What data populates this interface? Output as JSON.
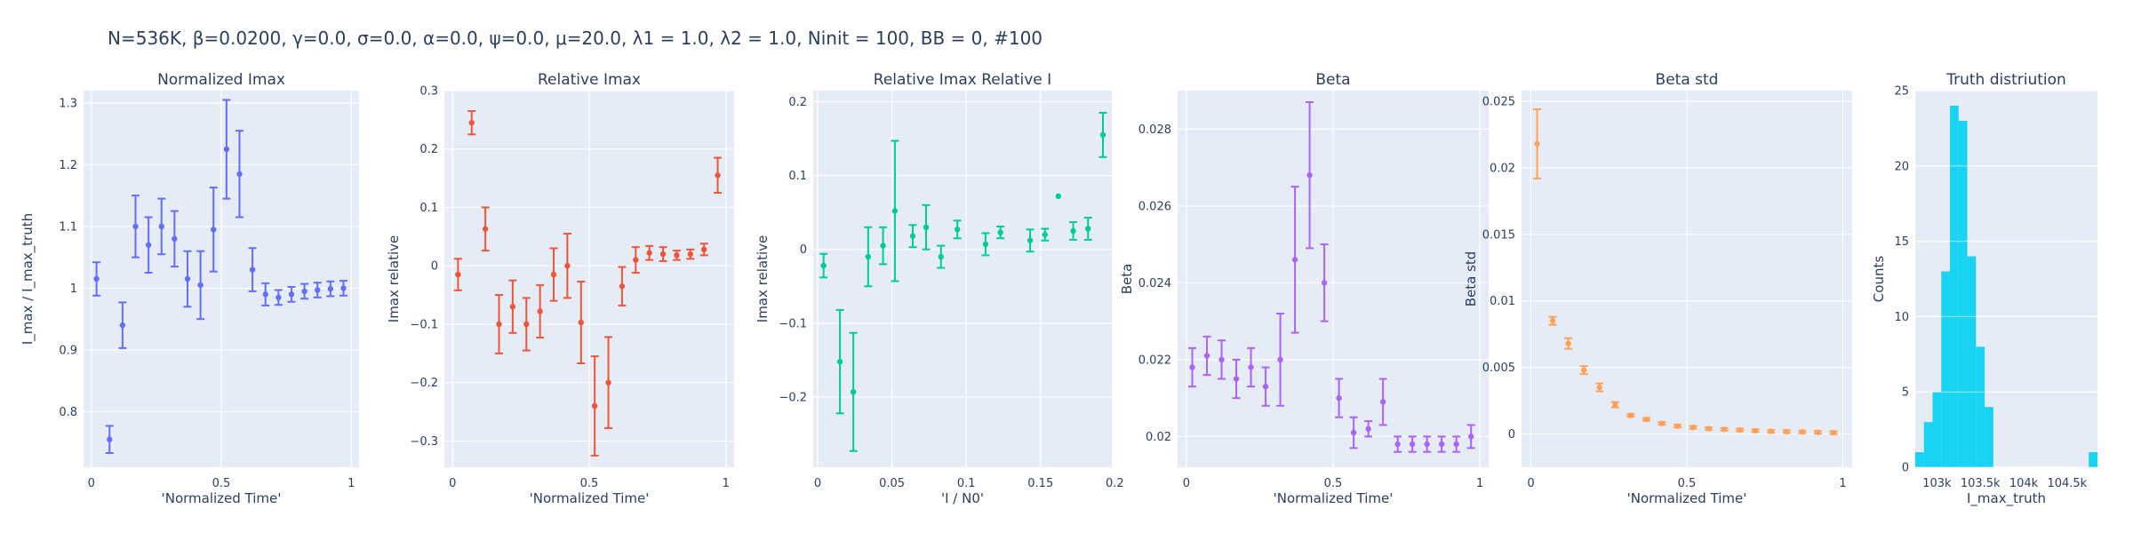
{
  "figure_title": "N=536K, β=0.0200, γ=0.0, σ=0.0,  α=0.0, ψ=0.0, μ=20.0, λ1 = 1.0, λ2 = 1.0, Ninit = 100, BB = 0, #100",
  "chart_data": [
    {
      "id": "normalized-imax",
      "type": "scatter",
      "title": "Normalized Imax",
      "xlabel": "'Normalized Time'",
      "ylabel": "I_max / I_max_truth",
      "color": "#636efa",
      "xlim": [
        -0.03,
        1.03
      ],
      "ylim": [
        0.71,
        1.32
      ],
      "xticks": [
        0,
        0.5,
        1
      ],
      "xticklabels": [
        "0",
        "0.5",
        "1"
      ],
      "yticks": [
        0.8,
        0.9,
        1.0,
        1.1,
        1.2,
        1.3
      ],
      "yticklabels": [
        "0.8",
        "0.9",
        "1",
        "1.1",
        "1.2",
        "1.3"
      ],
      "x": [
        0.02,
        0.07,
        0.12,
        0.17,
        0.22,
        0.27,
        0.32,
        0.37,
        0.42,
        0.47,
        0.52,
        0.57,
        0.62,
        0.67,
        0.72,
        0.77,
        0.82,
        0.87,
        0.92,
        0.97
      ],
      "y": [
        1.015,
        0.755,
        0.94,
        1.1,
        1.07,
        1.1,
        1.08,
        1.015,
        1.005,
        1.095,
        1.225,
        1.185,
        1.03,
        0.99,
        0.985,
        0.99,
        0.995,
        0.997,
        0.999,
        1.0
      ],
      "err": [
        0.027,
        0.022,
        0.037,
        0.05,
        0.045,
        0.045,
        0.045,
        0.045,
        0.055,
        0.068,
        0.08,
        0.07,
        0.035,
        0.018,
        0.012,
        0.012,
        0.012,
        0.012,
        0.012,
        0.012
      ]
    },
    {
      "id": "relative-imax",
      "type": "scatter",
      "title": "Relative Imax",
      "xlabel": "'Normalized Time'",
      "ylabel": "Imax relative",
      "color": "#ef553b",
      "xlim": [
        -0.03,
        1.03
      ],
      "ylim": [
        -0.345,
        0.3
      ],
      "xticks": [
        0,
        0.5,
        1
      ],
      "xticklabels": [
        "0",
        "0.5",
        "1"
      ],
      "yticks": [
        -0.3,
        -0.2,
        -0.1,
        0,
        0.1,
        0.2,
        0.3
      ],
      "yticklabels": [
        "−0.3",
        "−0.2",
        "−0.1",
        "0",
        "0.1",
        "0.2",
        "0.3"
      ],
      "x": [
        0.02,
        0.07,
        0.12,
        0.17,
        0.22,
        0.27,
        0.32,
        0.37,
        0.42,
        0.47,
        0.52,
        0.57,
        0.62,
        0.67,
        0.72,
        0.77,
        0.82,
        0.87,
        0.92,
        0.97
      ],
      "y": [
        -0.015,
        0.245,
        0.063,
        -0.1,
        -0.07,
        -0.1,
        -0.078,
        -0.015,
        0.0,
        -0.097,
        -0.24,
        -0.2,
        -0.035,
        0.01,
        0.022,
        0.02,
        0.018,
        0.02,
        0.028,
        0.155
      ],
      "err": [
        0.027,
        0.02,
        0.037,
        0.05,
        0.045,
        0.045,
        0.045,
        0.045,
        0.055,
        0.07,
        0.085,
        0.078,
        0.033,
        0.022,
        0.012,
        0.012,
        0.008,
        0.008,
        0.01,
        0.03
      ]
    },
    {
      "id": "relative-imax-relative-i",
      "type": "scatter",
      "title": "Relative Imax Relative I",
      "xlabel": "'I / N0'",
      "ylabel": "Imax relative",
      "color": "#00cc96",
      "xlim": [
        -0.003,
        0.198
      ],
      "ylim": [
        -0.295,
        0.215
      ],
      "xticks": [
        0,
        0.05,
        0.1,
        0.15,
        0.2
      ],
      "xticklabels": [
        "0",
        "0.05",
        "0.1",
        "0.15",
        "0.2"
      ],
      "yticks": [
        -0.2,
        -0.1,
        0,
        0.1,
        0.2
      ],
      "yticklabels": [
        "−0.2",
        "−0.1",
        "0",
        "0.1",
        "0.2"
      ],
      "x": [
        0.004,
        0.015,
        0.024,
        0.034,
        0.044,
        0.052,
        0.064,
        0.073,
        0.083,
        0.094,
        0.113,
        0.123,
        0.143,
        0.153,
        0.162,
        0.172,
        0.182,
        0.192
      ],
      "y": [
        -0.022,
        -0.152,
        -0.193,
        -0.01,
        0.005,
        0.052,
        0.018,
        0.03,
        -0.01,
        0.027,
        0.007,
        0.023,
        0.012,
        0.02,
        0.072,
        0.025,
        0.028,
        0.155
      ],
      "err": [
        0.016,
        0.07,
        0.08,
        0.04,
        0.025,
        0.095,
        0.015,
        0.03,
        0.015,
        0.012,
        0.015,
        0.008,
        0.015,
        0.008,
        0.0,
        0.012,
        0.015,
        0.03
      ]
    },
    {
      "id": "beta",
      "type": "scatter",
      "title": "Beta",
      "xlabel": "'Normalized Time'",
      "ylabel": "Beta",
      "color": "#ab63fa",
      "xlim": [
        -0.03,
        1.03
      ],
      "ylim": [
        0.0192,
        0.029
      ],
      "xticks": [
        0,
        0.5,
        1
      ],
      "xticklabels": [
        "0",
        "0.5",
        "1"
      ],
      "yticks": [
        0.02,
        0.022,
        0.024,
        0.026,
        0.028
      ],
      "yticklabels": [
        "0.02",
        "0.022",
        "0.024",
        "0.026",
        "0.028"
      ],
      "x": [
        0.02,
        0.07,
        0.12,
        0.17,
        0.22,
        0.27,
        0.32,
        0.37,
        0.42,
        0.47,
        0.52,
        0.57,
        0.62,
        0.67,
        0.72,
        0.77,
        0.82,
        0.87,
        0.92,
        0.97
      ],
      "y": [
        0.0218,
        0.0221,
        0.022,
        0.0215,
        0.0218,
        0.0213,
        0.022,
        0.0246,
        0.0268,
        0.024,
        0.021,
        0.0201,
        0.0202,
        0.0209,
        0.0198,
        0.0198,
        0.0198,
        0.0198,
        0.0198,
        0.02
      ],
      "err": [
        0.0005,
        0.0005,
        0.0005,
        0.0005,
        0.0005,
        0.0005,
        0.0012,
        0.0019,
        0.0019,
        0.001,
        0.0005,
        0.0004,
        0.0002,
        0.0006,
        0.0002,
        0.0002,
        0.0002,
        0.0002,
        0.0002,
        0.0003
      ]
    },
    {
      "id": "beta-std",
      "type": "scatter",
      "title": "Beta std",
      "xlabel": "'Normalized Time'",
      "ylabel": "Beta std",
      "color": "#ffa15a",
      "xlim": [
        -0.03,
        1.03
      ],
      "ylim": [
        -0.0025,
        0.0258
      ],
      "xticks": [
        0,
        0.5,
        1
      ],
      "xticklabels": [
        "0",
        "0.5",
        "1"
      ],
      "yticks": [
        0,
        0.005,
        0.01,
        0.015,
        0.02,
        0.025
      ],
      "yticklabels": [
        "0",
        "0.005",
        "0.01",
        "0.015",
        "0.02",
        "0.025"
      ],
      "x": [
        0.02,
        0.07,
        0.12,
        0.17,
        0.22,
        0.27,
        0.32,
        0.37,
        0.42,
        0.47,
        0.52,
        0.57,
        0.62,
        0.67,
        0.72,
        0.77,
        0.82,
        0.87,
        0.92,
        0.97
      ],
      "y": [
        0.0218,
        0.0085,
        0.0068,
        0.0048,
        0.0035,
        0.0022,
        0.0014,
        0.0011,
        0.0008,
        0.0006,
        0.0005,
        0.0004,
        0.00035,
        0.0003,
        0.00025,
        0.0002,
        0.00018,
        0.00015,
        0.00013,
        0.0001
      ],
      "err": [
        0.0026,
        0.0003,
        0.0004,
        0.0003,
        0.0003,
        0.0002,
        0.0001,
        0.0001,
        0.0001,
        0.0001,
        0.0001,
        0.0001,
        0.0001,
        0.0001,
        0.0001,
        0.0001,
        0.0001,
        0.0001,
        0.0001,
        0.0001
      ]
    },
    {
      "id": "truth-distribution",
      "type": "bar",
      "title": "Truth distriution",
      "xlabel": "I_max_truth",
      "ylabel": "Counts",
      "color": "#19d3f3",
      "xlim": [
        102750,
        104850
      ],
      "ylim": [
        0,
        25
      ],
      "xticks": [
        103000,
        103500,
        104000,
        104500
      ],
      "xticklabels": [
        "103k",
        "103.5k",
        "104k",
        "104.5k"
      ],
      "yticks": [
        0,
        5,
        10,
        15,
        20,
        25
      ],
      "yticklabels": [
        "0",
        "5",
        "10",
        "15",
        "20",
        "25"
      ],
      "bin_start": [
        102750,
        102850,
        102950,
        103050,
        103150,
        103250,
        103350,
        103450,
        103550,
        103650,
        103750,
        103850,
        103950,
        104050,
        104150,
        104250,
        104350,
        104450,
        104550,
        104650,
        104750
      ],
      "bin_width": 100,
      "values": [
        1,
        3,
        5,
        13,
        24,
        23,
        14,
        8,
        4,
        0,
        0,
        0,
        0,
        0,
        0,
        0,
        0,
        0,
        0,
        0,
        1
      ]
    }
  ]
}
